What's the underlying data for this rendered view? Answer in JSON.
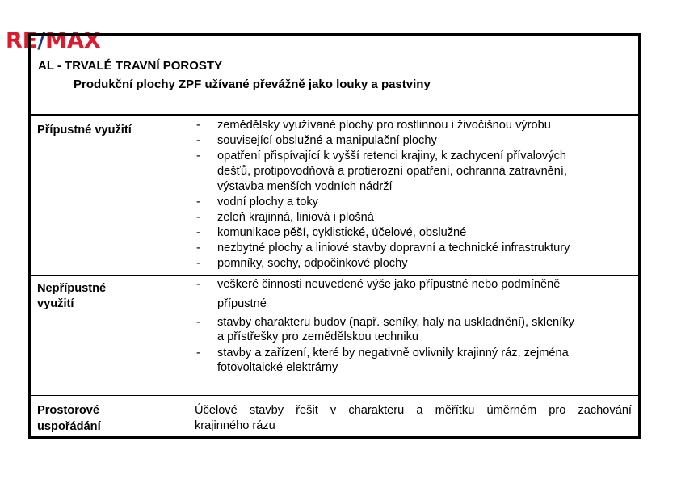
{
  "logo": {
    "text": "RE/MAX",
    "colors": {
      "red": "#dc1c2e",
      "blue": "#1a3a8f"
    }
  },
  "header": {
    "title": "AL - TRVALÉ TRAVNÍ POROSTY",
    "subtitle": "Produkční plochy ZPF užívané převážně jako louky a pastviny"
  },
  "rows": [
    {
      "label": [
        "Přípustné využití"
      ],
      "items": [
        [
          "zemědělsky využívané plochy pro rostlinnou i živočišnou výrobu"
        ],
        [
          "související obslužné a manipulační plochy"
        ],
        [
          "opatření přispívající k vyšší retenci krajiny, k zachycení přívalových",
          "dešťů, protipovodňová a protierozní opatření, ochranná zatravnění,",
          "výstavba menších vodních nádrží"
        ],
        [
          "vodní plochy a toky"
        ],
        [
          "zeleň krajinná, liniová i plošná"
        ],
        [
          "komunikace pěší, cyklistické, účelové, obslužné"
        ],
        [
          "nezbytné plochy a liniové stavby dopravní a technické infrastruktury"
        ],
        [
          "pomníky, sochy, odpočinkové plochy"
        ]
      ]
    },
    {
      "label": [
        "Nepřípustné",
        "využití"
      ],
      "items": [
        [
          "veškeré činnosti neuvedené výše jako přípustné nebo podmíněně",
          "přípustné"
        ],
        [
          "stavby charakteru budov (např. seníky, haly na uskladnění), skleníky",
          "a přístřešky pro zemědělskou techniku"
        ],
        [
          "stavby a zařízení, které by negativně ovlivnily krajinný ráz, zejména",
          "fotovoltaické elektrárny"
        ]
      ]
    },
    {
      "label": [
        "Prostorové",
        "uspořádání"
      ],
      "text": [
        "Účelové stavby řešit v charakteru a měřítku úměrném pro zachování",
        "krajinného rázu"
      ]
    }
  ],
  "bullet": "-"
}
